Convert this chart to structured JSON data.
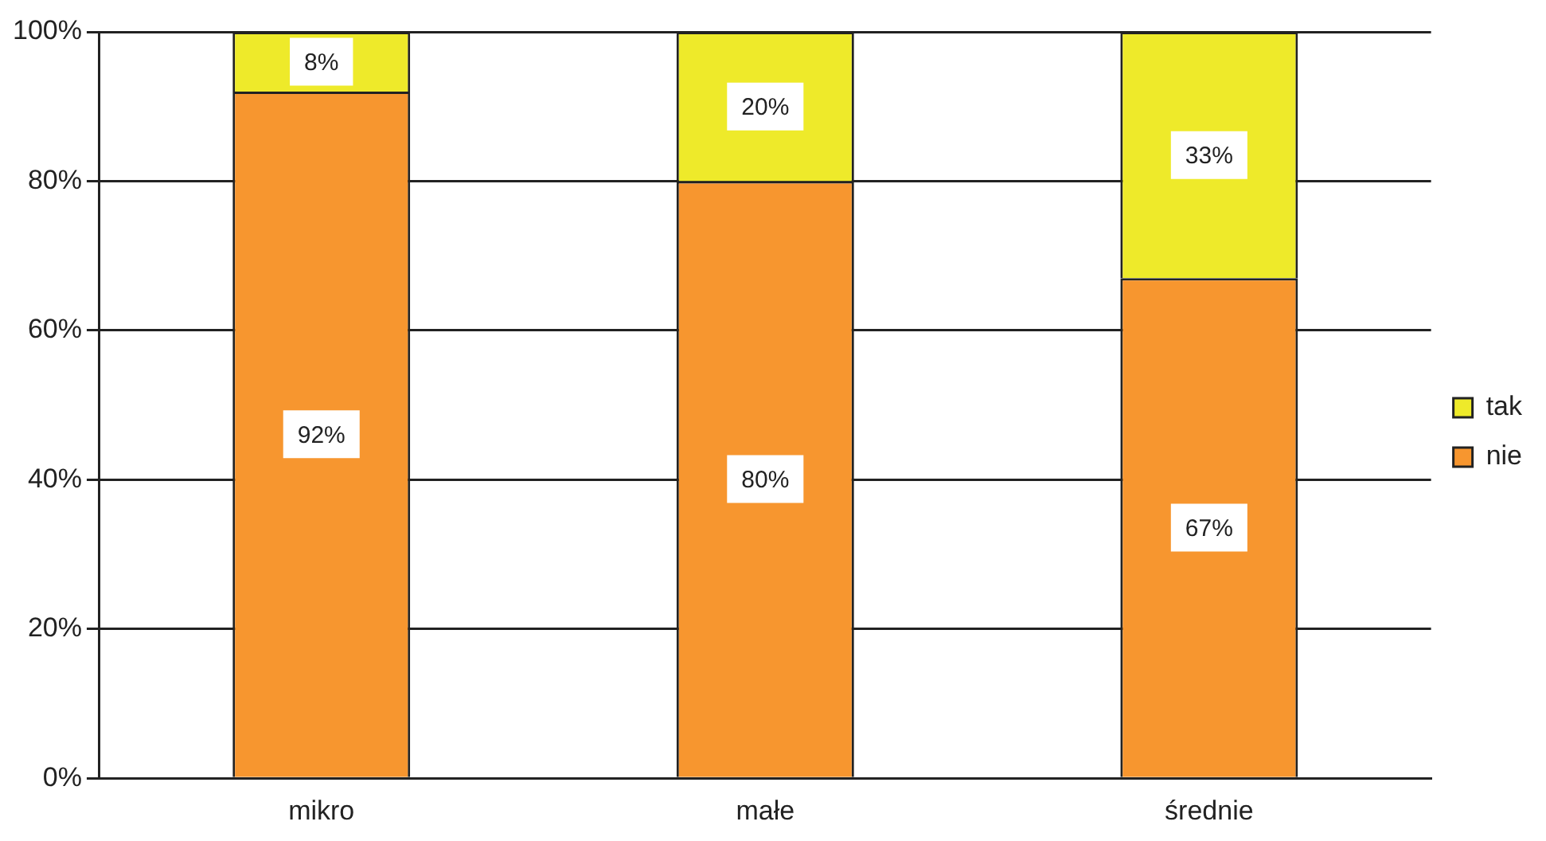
{
  "chart_data": {
    "type": "bar",
    "stacked": true,
    "categories": [
      "mikro",
      "małe",
      "średnie"
    ],
    "series": [
      {
        "name": "nie",
        "color": "#f7962f",
        "values": [
          92,
          80,
          67
        ],
        "value_labels": [
          "92%",
          "80%",
          "67%"
        ]
      },
      {
        "name": "tak",
        "color": "#eeea2a",
        "values": [
          8,
          20,
          33
        ],
        "value_labels": [
          "8%",
          "20%",
          "33%"
        ]
      }
    ],
    "ylim": [
      0,
      100
    ],
    "yticks": [
      {
        "value": 0,
        "label": "0%"
      },
      {
        "value": 20,
        "label": "20%"
      },
      {
        "value": 40,
        "label": "40%"
      },
      {
        "value": 60,
        "label": "60%"
      },
      {
        "value": 80,
        "label": "80%"
      },
      {
        "value": 100,
        "label": "100%"
      }
    ],
    "grid": "y",
    "legend": "right"
  }
}
